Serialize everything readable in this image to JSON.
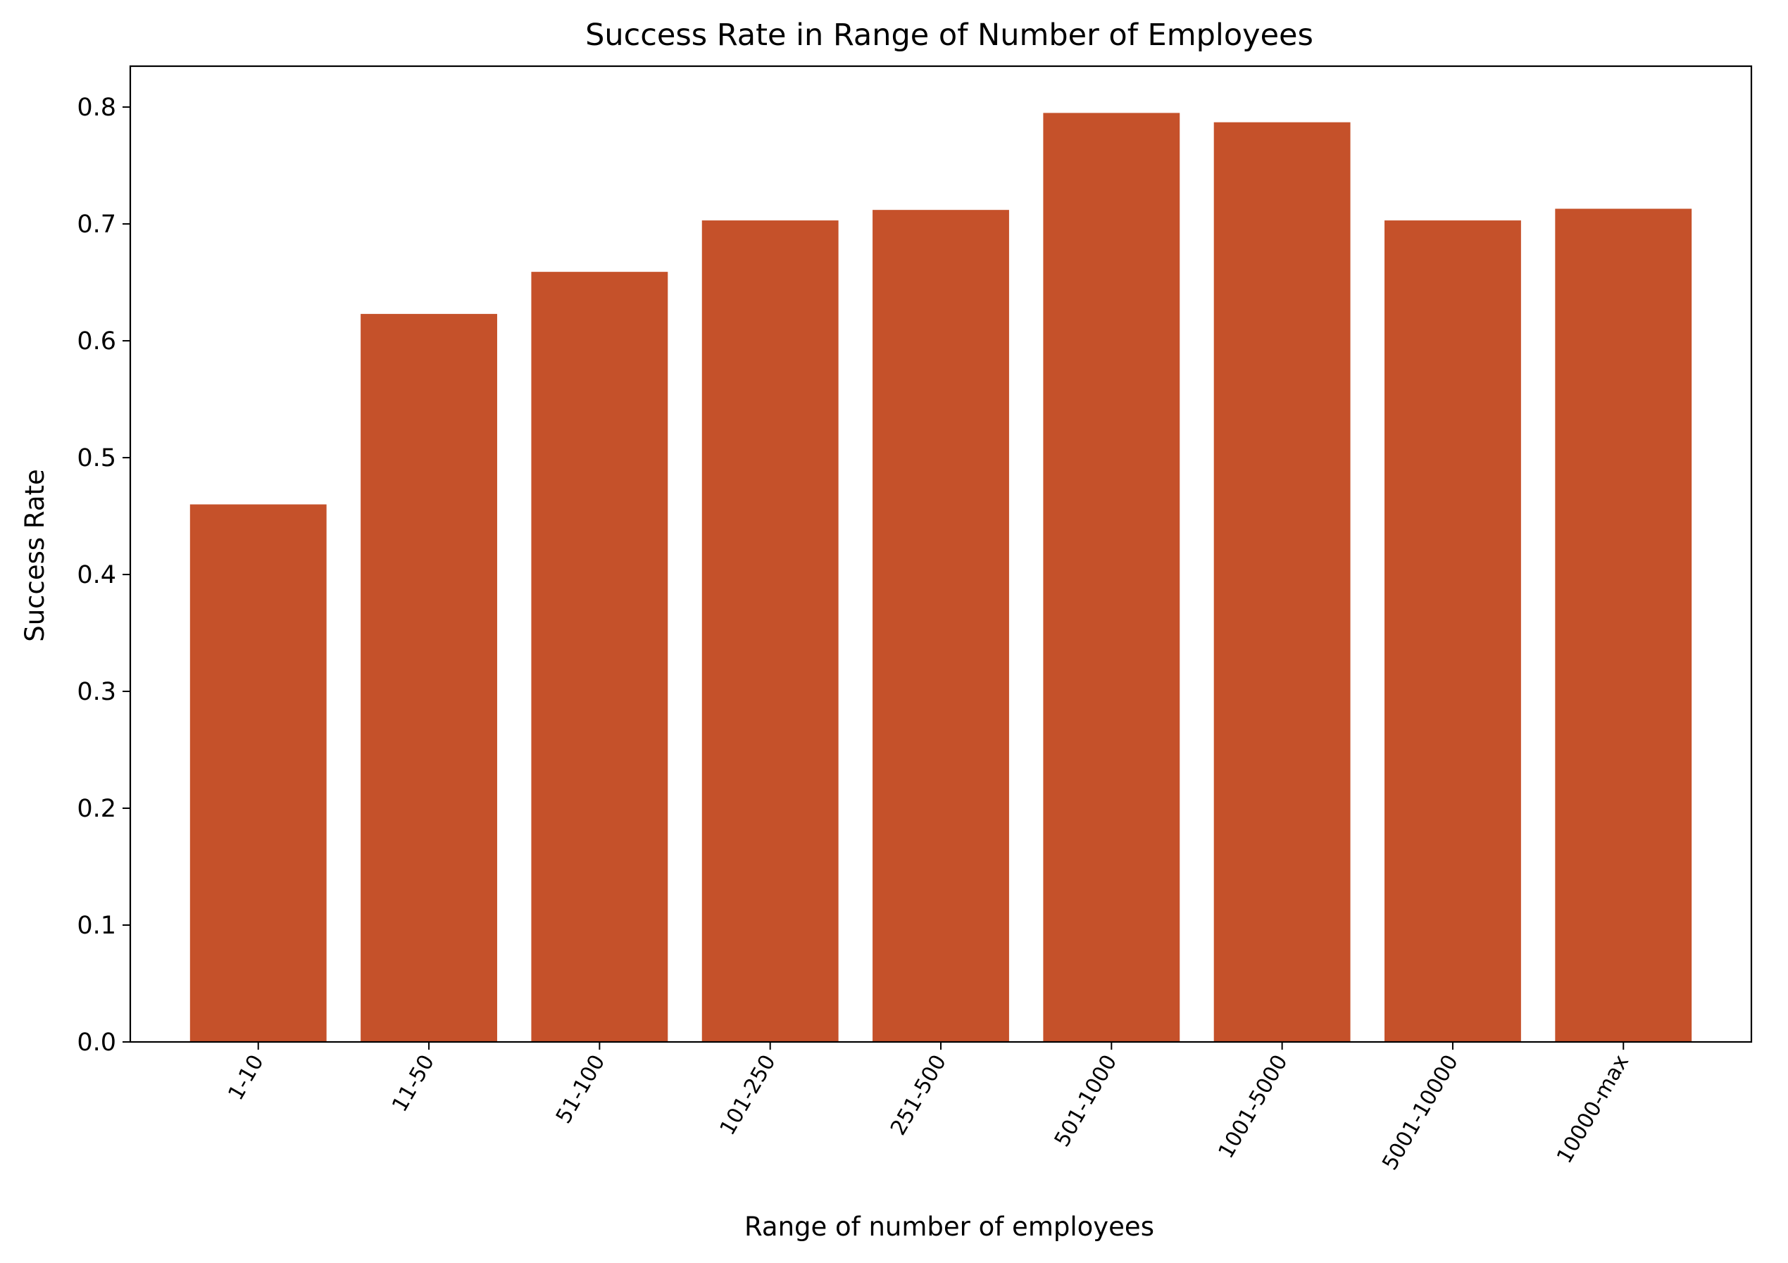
{
  "chart_data": {
    "type": "bar",
    "title": "Success Rate in Range of Number of Employees",
    "xlabel": "Range of number of employees",
    "ylabel": "Success Rate",
    "categories": [
      "1-10",
      "11-50",
      "51-100",
      "101-250",
      "251-500",
      "501-1000",
      "1001-5000",
      "5001-10000",
      "10000-max"
    ],
    "values": [
      0.46,
      0.623,
      0.659,
      0.703,
      0.712,
      0.795,
      0.787,
      0.703,
      0.713
    ],
    "ylim": [
      0,
      0.835
    ],
    "yticks": [
      0.0,
      0.1,
      0.2,
      0.3,
      0.4,
      0.5,
      0.6,
      0.7,
      0.8
    ],
    "ytick_labels": [
      "0.0",
      "0.1",
      "0.2",
      "0.3",
      "0.4",
      "0.5",
      "0.6",
      "0.7",
      "0.8"
    ],
    "bar_color": "#c5512a",
    "grid": false,
    "legend": "none"
  }
}
